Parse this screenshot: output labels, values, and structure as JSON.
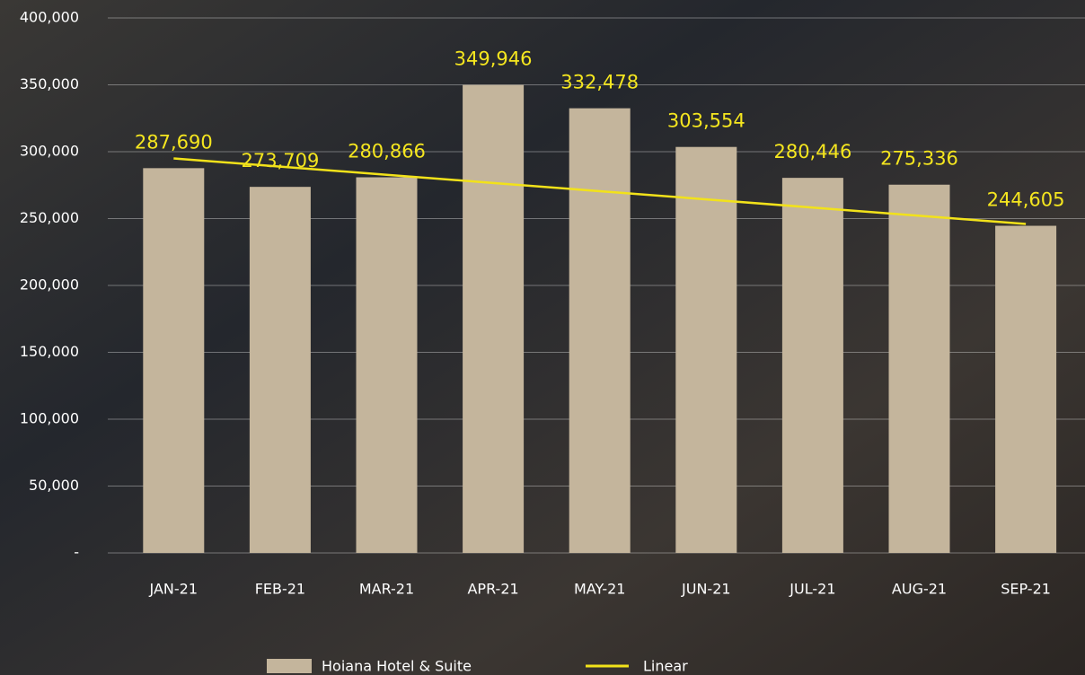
{
  "chart_data": {
    "type": "bar",
    "categories": [
      "JAN-21",
      "FEB-21",
      "MAR-21",
      "APR-21",
      "MAY-21",
      "JUN-21",
      "JUL-21",
      "AUG-21",
      "SEP-21"
    ],
    "series": [
      {
        "name": "Hoiana Hotel & Suite",
        "color": "#c4b59c",
        "values": [
          287690,
          273709,
          280866,
          349946,
          332478,
          303554,
          280446,
          275336,
          244605
        ],
        "value_labels": [
          "287,690",
          "273,709",
          "280,866",
          "349,946",
          "332,478",
          "303,554",
          "280,446",
          "275,336",
          "244,605"
        ]
      },
      {
        "name": "Linear",
        "type": "line",
        "color": "#f2e21a",
        "values": [
          295000,
          288875,
          282750,
          276625,
          270500,
          264375,
          258250,
          252125,
          246000
        ]
      }
    ],
    "ylim": [
      0,
      400000
    ],
    "yticks": [
      {
        "value": 0,
        "label": "-"
      },
      {
        "value": 50000,
        "label": "50,000"
      },
      {
        "value": 100000,
        "label": "100,000"
      },
      {
        "value": 150000,
        "label": "150,000"
      },
      {
        "value": 200000,
        "label": "200,000"
      },
      {
        "value": 250000,
        "label": "250,000"
      },
      {
        "value": 300000,
        "label": "300,000"
      },
      {
        "value": 350000,
        "label": "350,000"
      },
      {
        "value": 400000,
        "label": "400,000"
      }
    ],
    "grid": true,
    "legend": "bottom",
    "label_color": "#f5e61f"
  }
}
